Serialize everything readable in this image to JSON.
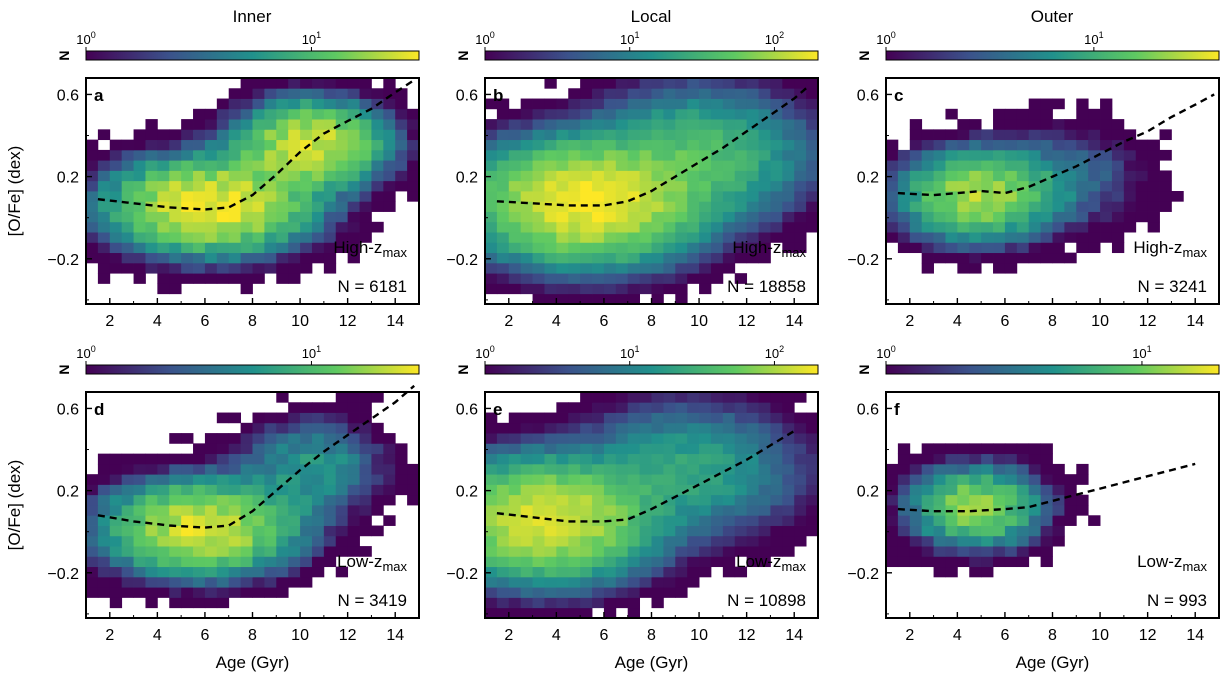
{
  "figure": {
    "column_titles": [
      "Inner",
      "Local",
      "Outer"
    ],
    "colormap": [
      "#440154",
      "#3b528b",
      "#21918c",
      "#5ec962",
      "#fde725"
    ],
    "colorbar_label": "N",
    "trend_color": "#000000"
  },
  "chart_data": [
    {
      "type": "heatmap",
      "panel": "a",
      "column": "Inner",
      "colorbar": {
        "label": "N",
        "scale": "log",
        "ticks": [
          {
            "value": 1,
            "base": "10",
            "exp": "0"
          },
          {
            "value": 10,
            "base": "10",
            "exp": "1"
          }
        ],
        "max": 30
      },
      "xlabel": "",
      "ylabel": "[O/Fe] (dex)",
      "xlim": [
        1,
        15
      ],
      "ylim": [
        -0.42,
        0.68
      ],
      "xticks": [
        "2",
        "4",
        "6",
        "8",
        "10",
        "12",
        "14"
      ],
      "yticks": [
        "−0.2",
        "0.2",
        "0.6"
      ],
      "annotation": {
        "main": "High-z",
        "sub": "max"
      },
      "n_label": "N = 6181",
      "distribution": {
        "components": [
          {
            "x": 6.2,
            "y": 0.06,
            "sx": 2.4,
            "sy": 0.13,
            "w": 1.0
          },
          {
            "x": 10.5,
            "y": 0.36,
            "sx": 1.8,
            "sy": 0.12,
            "w": 0.8
          }
        ],
        "peak_n": 30
      },
      "trend": {
        "style": "dashed",
        "points": [
          [
            1.5,
            0.09
          ],
          [
            3,
            0.07
          ],
          [
            4.5,
            0.05
          ],
          [
            6,
            0.04
          ],
          [
            7,
            0.05
          ],
          [
            8,
            0.11
          ],
          [
            9,
            0.21
          ],
          [
            10,
            0.32
          ],
          [
            11,
            0.41
          ],
          [
            12,
            0.47
          ],
          [
            13,
            0.53
          ],
          [
            14,
            0.61
          ],
          [
            14.8,
            0.67
          ]
        ]
      }
    },
    {
      "type": "heatmap",
      "panel": "b",
      "column": "Local",
      "colorbar": {
        "label": "N",
        "scale": "log",
        "ticks": [
          {
            "value": 1,
            "base": "10",
            "exp": "0"
          },
          {
            "value": 10,
            "base": "10",
            "exp": "1"
          },
          {
            "value": 100,
            "base": "10",
            "exp": "2"
          }
        ],
        "max": 200
      },
      "xlabel": "",
      "ylabel": "",
      "xlim": [
        1,
        15
      ],
      "ylim": [
        -0.42,
        0.68
      ],
      "xticks": [
        "2",
        "4",
        "6",
        "8",
        "10",
        "12",
        "14"
      ],
      "yticks": [
        "−0.2",
        "0.2",
        "0.6"
      ],
      "annotation": {
        "main": "High-z",
        "sub": "max"
      },
      "n_label": "N = 18858",
      "distribution": {
        "components": [
          {
            "x": 5.3,
            "y": 0.08,
            "sx": 2.3,
            "sy": 0.14,
            "w": 1.0
          },
          {
            "x": 10.0,
            "y": 0.3,
            "sx": 2.3,
            "sy": 0.16,
            "w": 0.2
          }
        ],
        "peak_n": 200
      },
      "trend": {
        "style": "dashed",
        "points": [
          [
            1.5,
            0.08
          ],
          [
            3,
            0.07
          ],
          [
            4.5,
            0.06
          ],
          [
            6,
            0.06
          ],
          [
            7,
            0.08
          ],
          [
            8,
            0.13
          ],
          [
            9,
            0.2
          ],
          [
            10,
            0.27
          ],
          [
            11,
            0.34
          ],
          [
            12,
            0.42
          ],
          [
            13,
            0.5
          ],
          [
            14,
            0.58
          ],
          [
            14.5,
            0.63
          ]
        ]
      }
    },
    {
      "type": "heatmap",
      "panel": "c",
      "column": "Outer",
      "colorbar": {
        "label": "N",
        "scale": "log",
        "ticks": [
          {
            "value": 1,
            "base": "10",
            "exp": "0"
          },
          {
            "value": 10,
            "base": "10",
            "exp": "1"
          }
        ],
        "max": 40
      },
      "xlabel": "",
      "ylabel": "",
      "xlim": [
        1,
        15
      ],
      "ylim": [
        -0.42,
        0.68
      ],
      "xticks": [
        "2",
        "4",
        "6",
        "8",
        "10",
        "12",
        "14"
      ],
      "yticks": [
        "−0.2",
        "0.2",
        "0.6"
      ],
      "annotation": {
        "main": "High-z",
        "sub": "max"
      },
      "n_label": "N = 3241",
      "distribution": {
        "components": [
          {
            "x": 4.8,
            "y": 0.11,
            "sx": 1.8,
            "sy": 0.12,
            "w": 1.0
          },
          {
            "x": 8.5,
            "y": 0.2,
            "sx": 2.0,
            "sy": 0.15,
            "w": 0.15
          }
        ],
        "peak_n": 25
      },
      "trend": {
        "style": "dashed",
        "points": [
          [
            1.5,
            0.12
          ],
          [
            3,
            0.11
          ],
          [
            4,
            0.12
          ],
          [
            5,
            0.13
          ],
          [
            6,
            0.12
          ],
          [
            7,
            0.15
          ],
          [
            8,
            0.2
          ],
          [
            9,
            0.25
          ],
          [
            10,
            0.31
          ],
          [
            11,
            0.37
          ],
          [
            12,
            0.42
          ],
          [
            13,
            0.49
          ],
          [
            14,
            0.55
          ],
          [
            14.8,
            0.6
          ]
        ]
      }
    },
    {
      "type": "heatmap",
      "panel": "d",
      "column": "Inner",
      "colorbar": {
        "label": "N",
        "scale": "log",
        "ticks": [
          {
            "value": 1,
            "base": "10",
            "exp": "0"
          },
          {
            "value": 10,
            "base": "10",
            "exp": "1"
          }
        ],
        "max": 30
      },
      "xlabel": "Age (Gyr)",
      "ylabel": "[O/Fe] (dex)",
      "xlim": [
        1,
        15
      ],
      "ylim": [
        -0.42,
        0.68
      ],
      "xticks": [
        "2",
        "4",
        "6",
        "8",
        "10",
        "12",
        "14"
      ],
      "yticks": [
        "−0.2",
        "0.2",
        "0.6"
      ],
      "annotation": {
        "main": "Low-z",
        "sub": "max"
      },
      "n_label": "N = 3419",
      "distribution": {
        "components": [
          {
            "x": 5.8,
            "y": 0.02,
            "sx": 2.3,
            "sy": 0.13,
            "w": 1.0
          },
          {
            "x": 10.5,
            "y": 0.32,
            "sx": 1.8,
            "sy": 0.14,
            "w": 0.25
          }
        ],
        "peak_n": 25
      },
      "trend": {
        "style": "dashed",
        "points": [
          [
            1.5,
            0.08
          ],
          [
            3,
            0.05
          ],
          [
            4.5,
            0.03
          ],
          [
            6,
            0.02
          ],
          [
            7,
            0.03
          ],
          [
            8,
            0.1
          ],
          [
            9,
            0.2
          ],
          [
            10,
            0.3
          ],
          [
            11,
            0.39
          ],
          [
            12,
            0.47
          ],
          [
            13,
            0.55
          ],
          [
            14,
            0.63
          ],
          [
            14.8,
            0.71
          ]
        ]
      }
    },
    {
      "type": "heatmap",
      "panel": "e",
      "column": "Local",
      "colorbar": {
        "label": "N",
        "scale": "log",
        "ticks": [
          {
            "value": 1,
            "base": "10",
            "exp": "0"
          },
          {
            "value": 10,
            "base": "10",
            "exp": "1"
          },
          {
            "value": 100,
            "base": "10",
            "exp": "2"
          }
        ],
        "max": 200
      },
      "xlabel": "Age (Gyr)",
      "ylabel": "",
      "xlim": [
        1,
        15
      ],
      "ylim": [
        -0.42,
        0.68
      ],
      "xticks": [
        "2",
        "4",
        "6",
        "8",
        "10",
        "12",
        "14"
      ],
      "yticks": [
        "−0.2",
        "0.2",
        "0.6"
      ],
      "annotation": {
        "main": "Low-z",
        "sub": "max"
      },
      "n_label": "N = 10898",
      "distribution": {
        "components": [
          {
            "x": 3.6,
            "y": 0.06,
            "sx": 2.2,
            "sy": 0.14,
            "w": 1.0
          },
          {
            "x": 9.5,
            "y": 0.3,
            "sx": 2.4,
            "sy": 0.16,
            "w": 0.15
          }
        ],
        "peak_n": 150
      },
      "trend": {
        "style": "dashed",
        "points": [
          [
            1.5,
            0.09
          ],
          [
            3,
            0.07
          ],
          [
            4.5,
            0.05
          ],
          [
            6,
            0.05
          ],
          [
            7,
            0.06
          ],
          [
            8,
            0.11
          ],
          [
            9,
            0.17
          ],
          [
            10,
            0.23
          ],
          [
            11,
            0.29
          ],
          [
            12,
            0.35
          ],
          [
            13,
            0.42
          ],
          [
            14,
            0.49
          ]
        ]
      }
    },
    {
      "type": "heatmap",
      "panel": "f",
      "column": "Outer",
      "colorbar": {
        "label": "N",
        "scale": "log",
        "ticks": [
          {
            "value": 1,
            "base": "10",
            "exp": "0"
          },
          {
            "value": 10,
            "base": "10",
            "exp": "1"
          }
        ],
        "max": 20
      },
      "xlabel": "Age (Gyr)",
      "ylabel": "",
      "xlim": [
        1,
        15
      ],
      "ylim": [
        -0.42,
        0.68
      ],
      "xticks": [
        "2",
        "4",
        "6",
        "8",
        "10",
        "12",
        "14"
      ],
      "yticks": [
        "−0.2",
        "0.2",
        "0.6"
      ],
      "annotation": {
        "main": "Low-z",
        "sub": "max"
      },
      "n_label": "N = 993",
      "distribution": {
        "components": [
          {
            "x": 4.8,
            "y": 0.12,
            "sx": 1.7,
            "sy": 0.12,
            "w": 1.0
          }
        ],
        "peak_n": 12
      },
      "trend": {
        "style": "dashed",
        "points": [
          [
            1.5,
            0.11
          ],
          [
            3,
            0.1
          ],
          [
            4.5,
            0.1
          ],
          [
            6,
            0.11
          ],
          [
            7,
            0.12
          ],
          [
            8,
            0.15
          ],
          [
            9,
            0.18
          ],
          [
            10,
            0.21
          ],
          [
            11,
            0.24
          ],
          [
            12,
            0.27
          ],
          [
            13,
            0.3
          ],
          [
            14,
            0.33
          ]
        ]
      }
    }
  ]
}
